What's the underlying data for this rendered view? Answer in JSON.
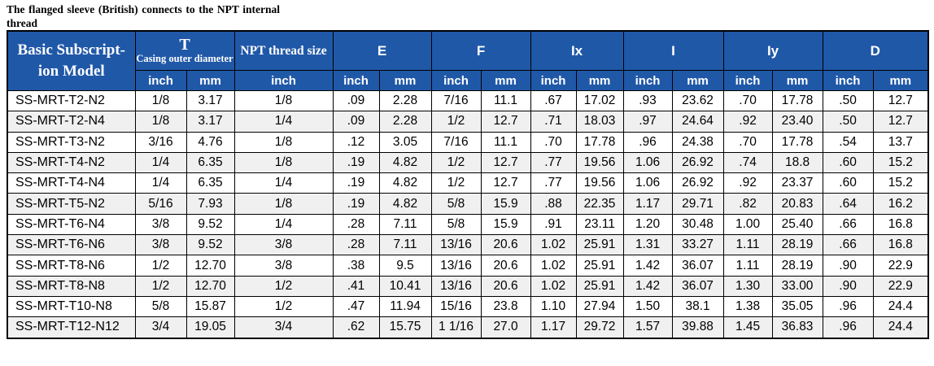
{
  "title": "The flanged sleeve (British) connects to the NPT internal thread",
  "colors": {
    "header_bg": "#2058a8",
    "header_text": "#ffffff",
    "row_stripe": "#f0f0f0",
    "border": "#000000"
  },
  "table": {
    "model_header": {
      "line1": "Basic Subscript-",
      "line2": "ion Model"
    },
    "units": {
      "inch": "inch",
      "mm": "mm"
    },
    "groups": [
      {
        "label": "T",
        "sublabel": "Casing outer diameter"
      },
      {
        "label": "NPT thread size"
      },
      {
        "label": "E"
      },
      {
        "label": "F"
      },
      {
        "label": "Ix"
      },
      {
        "label": "I"
      },
      {
        "label": "Iy"
      },
      {
        "label": "D"
      }
    ],
    "rows": [
      {
        "model": "SS-MRT-T2-N2",
        "values": [
          "1/8",
          "3.17",
          "1/8",
          ".09",
          "2.28",
          "7/16",
          "11.1",
          ".67",
          "17.02",
          ".93",
          "23.62",
          ".70",
          "17.78",
          ".50",
          "12.7"
        ]
      },
      {
        "model": "SS-MRT-T2-N4",
        "values": [
          "1/8",
          "3.17",
          "1/4",
          ".09",
          "2.28",
          "1/2",
          "12.7",
          ".71",
          "18.03",
          ".97",
          "24.64",
          ".92",
          "23.40",
          ".50",
          "12.7"
        ]
      },
      {
        "model": "SS-MRT-T3-N2",
        "values": [
          "3/16",
          "4.76",
          "1/8",
          ".12",
          "3.05",
          "7/16",
          "11.1",
          ".70",
          "17.78",
          ".96",
          "24.38",
          ".70",
          "17.78",
          ".54",
          "13.7"
        ]
      },
      {
        "model": "SS-MRT-T4-N2",
        "values": [
          "1/4",
          "6.35",
          "1/8",
          ".19",
          "4.82",
          "1/2",
          "12.7",
          ".77",
          "19.56",
          "1.06",
          "26.92",
          ".74",
          "18.8",
          ".60",
          "15.2"
        ]
      },
      {
        "model": "SS-MRT-T4-N4",
        "values": [
          "1/4",
          "6.35",
          "1/4",
          ".19",
          "4.82",
          "1/2",
          "12.7",
          ".77",
          "19.56",
          "1.06",
          "26.92",
          ".92",
          "23.37",
          ".60",
          "15.2"
        ]
      },
      {
        "model": "SS-MRT-T5-N2",
        "values": [
          "5/16",
          "7.93",
          "1/8",
          ".19",
          "4.82",
          "5/8",
          "15.9",
          ".88",
          "22.35",
          "1.17",
          "29.71",
          ".82",
          "20.83",
          ".64",
          "16.2"
        ]
      },
      {
        "model": "SS-MRT-T6-N4",
        "values": [
          "3/8",
          "9.52",
          "1/4",
          ".28",
          "7.11",
          "5/8",
          "15.9",
          ".91",
          "23.11",
          "1.20",
          "30.48",
          "1.00",
          "25.40",
          ".66",
          "16.8"
        ]
      },
      {
        "model": "SS-MRT-T6-N6",
        "values": [
          "3/8",
          "9.52",
          "3/8",
          ".28",
          "7.11",
          "13/16",
          "20.6",
          "1.02",
          "25.91",
          "1.31",
          "33.27",
          "1.11",
          "28.19",
          ".66",
          "16.8"
        ]
      },
      {
        "model": "SS-MRT-T8-N6",
        "values": [
          "1/2",
          "12.70",
          "3/8",
          ".38",
          "9.5",
          "13/16",
          "20.6",
          "1.02",
          "25.91",
          "1.42",
          "36.07",
          "1.11",
          "28.19",
          ".90",
          "22.9"
        ]
      },
      {
        "model": "SS-MRT-T8-N8",
        "values": [
          "1/2",
          "12.70",
          "1/2",
          ".41",
          "10.41",
          "13/16",
          "20.6",
          "1.02",
          "25.91",
          "1.42",
          "36.07",
          "1.30",
          "33.00",
          ".90",
          "22.9"
        ]
      },
      {
        "model": "SS-MRT-T10-N8",
        "values": [
          "5/8",
          "15.87",
          "1/2",
          ".47",
          "11.94",
          "15/16",
          "23.8",
          "1.10",
          "27.94",
          "1.50",
          "38.1",
          "1.38",
          "35.05",
          ".96",
          "24.4"
        ]
      },
      {
        "model": "SS-MRT-T12-N12",
        "values": [
          "3/4",
          "19.05",
          "3/4",
          ".62",
          "15.75",
          "1 1/16",
          "27.0",
          "1.17",
          "29.72",
          "1.57",
          "39.88",
          "1.45",
          "36.83",
          ".96",
          "24.4"
        ]
      }
    ]
  }
}
